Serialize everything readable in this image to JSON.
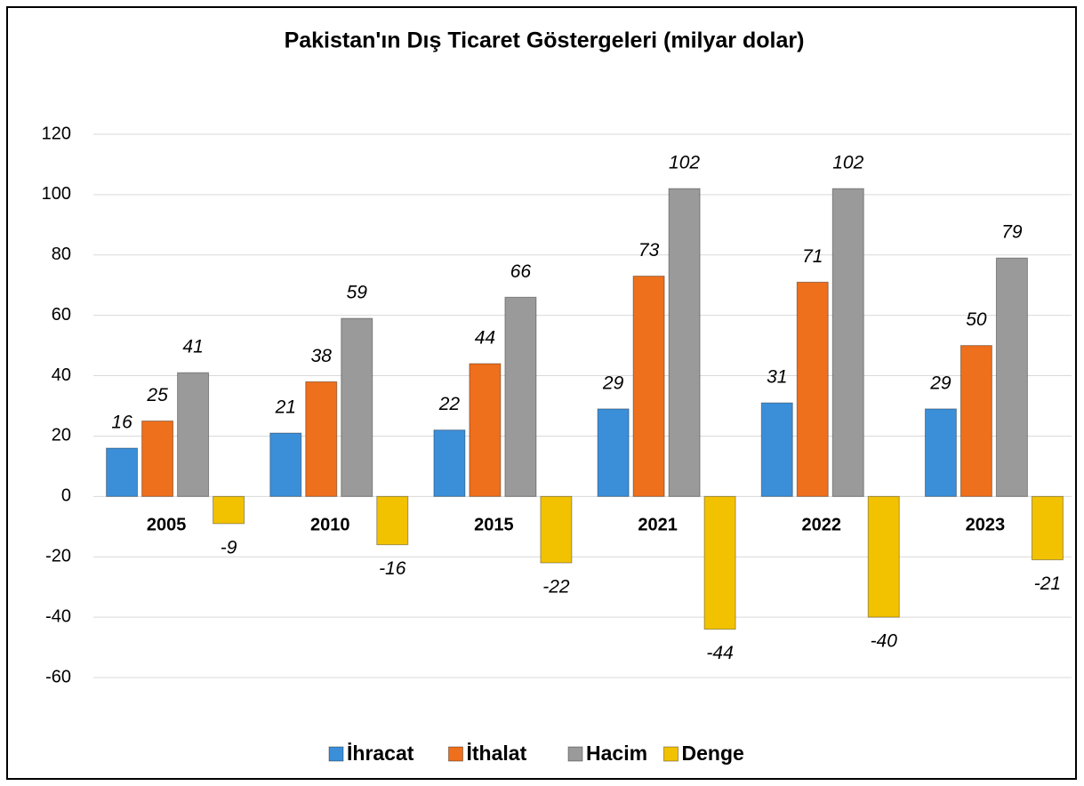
{
  "chart_data": {
    "type": "bar",
    "title": "Pakistan'ın Dış Ticaret Göstergeleri  (milyar dolar)",
    "categories": [
      "2005",
      "2010",
      "2015",
      "2021",
      "2022",
      "2023"
    ],
    "series": [
      {
        "name": "İhracat",
        "color": "#3b8fd9",
        "values": [
          16,
          21,
          22,
          29,
          31,
          29
        ]
      },
      {
        "name": "İthalat",
        "color": "#ee6f1c",
        "values": [
          25,
          38,
          44,
          73,
          71,
          50
        ]
      },
      {
        "name": "Hacim",
        "color": "#9a9a9a",
        "values": [
          41,
          59,
          66,
          102,
          102,
          79
        ]
      },
      {
        "name": "Denge",
        "color": "#f2c200",
        "values": [
          -9,
          -16,
          -22,
          -44,
          -40,
          -21
        ]
      }
    ],
    "ylim": [
      -60,
      120
    ],
    "yticks": [
      -60,
      -40,
      -20,
      0,
      20,
      40,
      60,
      80,
      100,
      120
    ],
    "grid": true,
    "legend": "bottom"
  }
}
